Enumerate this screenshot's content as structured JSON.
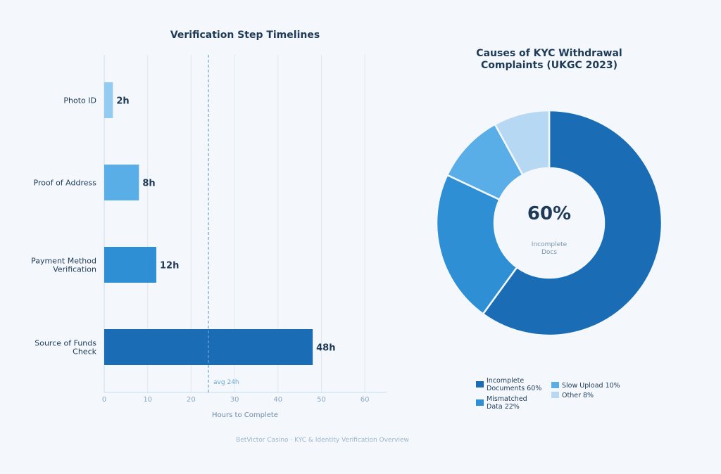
{
  "footer": "BetVictor Casino · KYC & Identity Verification Overview",
  "chart_data": [
    {
      "type": "bar",
      "orientation": "horizontal",
      "title": "Verification Step Timelines",
      "xlabel": "Hours to Complete",
      "ylabel": "",
      "categories": [
        "Photo ID",
        "Proof of Address",
        "Payment Method Verification",
        "Source of Funds Check"
      ],
      "category_lines": [
        [
          "Photo ID"
        ],
        [
          "Proof of Address"
        ],
        [
          "Payment Method",
          "Verification"
        ],
        [
          "Source of Funds",
          "Check"
        ]
      ],
      "values": [
        2,
        8,
        12,
        48
      ],
      "value_labels": [
        "2h",
        "8h",
        "12h",
        "48h"
      ],
      "colors": [
        "#93cbf1",
        "#5aaee8",
        "#2f8fd5",
        "#1a6db5"
      ],
      "xlim": [
        0,
        65
      ],
      "xticks": [
        0,
        10,
        20,
        30,
        40,
        50,
        60
      ],
      "tick_labels": [
        "0",
        "10",
        "20",
        "30",
        "40",
        "50",
        "60"
      ],
      "grid": true,
      "reference_line": {
        "value": 24,
        "label": "avg 24h",
        "color": "#6aa6cf"
      }
    },
    {
      "type": "pie",
      "donut": true,
      "title": "Causes of KYC Withdrawal Complaints (UKGC 2023)",
      "title_lines": [
        "Causes of KYC Withdrawal",
        "Complaints (UKGC 2023)"
      ],
      "labels": [
        "Incomplete Documents",
        "Mismatched Data",
        "Slow Upload",
        "Other"
      ],
      "values": [
        60,
        22,
        10,
        8
      ],
      "colors": [
        "#1a6db5",
        "#2f8fd5",
        "#5aaee8",
        "#b7d8f3"
      ],
      "center_value": "60%",
      "center_caption_lines": [
        "Incomplete",
        "Docs"
      ],
      "legend_placement": "bottom",
      "legend": [
        {
          "lines": [
            "Incomplete",
            "Documents  60%"
          ],
          "color": "#1a6db5"
        },
        {
          "lines": [
            "Mismatched",
            "Data  22%"
          ],
          "color": "#2f8fd5"
        },
        {
          "lines": [
            "Slow Upload  10%"
          ],
          "color": "#5aaee8"
        },
        {
          "lines": [
            "Other  8%"
          ],
          "color": "#b7d8f3"
        }
      ]
    }
  ]
}
